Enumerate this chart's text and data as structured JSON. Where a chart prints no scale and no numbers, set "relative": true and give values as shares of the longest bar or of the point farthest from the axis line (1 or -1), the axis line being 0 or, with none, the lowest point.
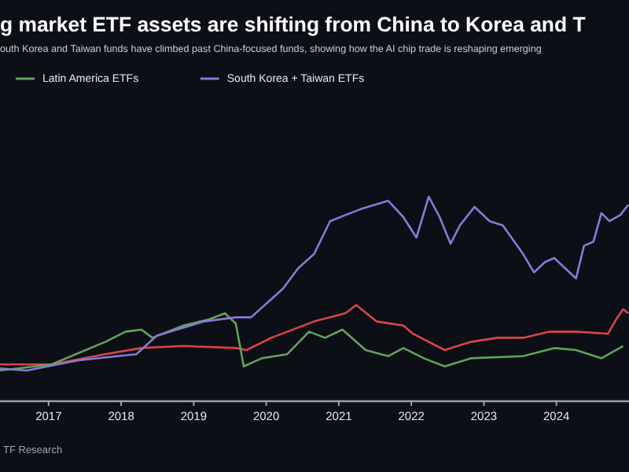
{
  "chart_data": {
    "type": "line",
    "title": "g market ETF assets are shifting from China to Korea and T",
    "subtitle": "outh Korea and Taiwan funds have climbed past China-focused funds, showing how the AI chip trade is reshaping emerging",
    "annotations": [
      "TF Research"
    ],
    "relative": true,
    "legend": "top left",
    "xlim": [
      2016.33,
      2025.0
    ],
    "xticks": [
      2017,
      2018,
      2019,
      2020,
      2021,
      2022,
      2023,
      2024
    ],
    "line_style": "solid",
    "marker": "none",
    "series": [
      {
        "color": "#d9434a",
        "x": [
          2016.33,
          2017.04,
          2017.78,
          2018.28,
          2018.86,
          2019.58,
          2019.73,
          2020.07,
          2020.66,
          2021.09,
          2021.24,
          2021.52,
          2021.89,
          2022.02,
          2022.46,
          2022.82,
          2023.19,
          2023.54,
          2023.91,
          2024.27,
          2024.71,
          2024.84,
          2024.92,
          2024.99
        ],
        "values": [
          0.18,
          0.18,
          0.23,
          0.26,
          0.27,
          0.26,
          0.25,
          0.31,
          0.39,
          0.43,
          0.47,
          0.39,
          0.37,
          0.33,
          0.25,
          0.29,
          0.31,
          0.31,
          0.34,
          0.34,
          0.33,
          0.41,
          0.45,
          0.43
        ]
      },
      {
        "name": "Latin America ETFs",
        "color": "#5fa35a",
        "x": [
          2016.33,
          2017.04,
          2017.78,
          2018.06,
          2018.28,
          2018.43,
          2018.86,
          2019.21,
          2019.43,
          2019.58,
          2019.69,
          2019.94,
          2020.29,
          2020.59,
          2020.81,
          2021.05,
          2021.37,
          2021.68,
          2021.89,
          2022.17,
          2022.46,
          2022.82,
          2023.54,
          2023.97,
          2024.27,
          2024.62,
          2024.92
        ],
        "values": [
          0.15,
          0.18,
          0.29,
          0.34,
          0.35,
          0.31,
          0.37,
          0.4,
          0.43,
          0.38,
          0.17,
          0.21,
          0.23,
          0.34,
          0.31,
          0.35,
          0.25,
          0.22,
          0.26,
          0.21,
          0.17,
          0.21,
          0.22,
          0.26,
          0.25,
          0.21,
          0.27
        ]
      },
      {
        "name": "South Korea + Taiwan ETFs",
        "color": "#8a78d8",
        "x": [
          2016.33,
          2016.7,
          2017.41,
          2018.21,
          2018.49,
          2019.14,
          2019.58,
          2019.79,
          2020.01,
          2020.23,
          2020.44,
          2020.66,
          2020.88,
          2021.09,
          2021.31,
          2021.68,
          2021.89,
          2022.07,
          2022.24,
          2022.39,
          2022.54,
          2022.67,
          2022.87,
          2023.08,
          2023.26,
          2023.54,
          2023.69,
          2023.84,
          2023.97,
          2024.12,
          2024.27,
          2024.38,
          2024.51,
          2024.62,
          2024.73,
          2024.88,
          2024.99
        ],
        "values": [
          0.16,
          0.15,
          0.2,
          0.23,
          0.32,
          0.39,
          0.41,
          0.41,
          0.48,
          0.55,
          0.65,
          0.72,
          0.88,
          0.91,
          0.94,
          0.98,
          0.9,
          0.8,
          1,
          0.9,
          0.77,
          0.86,
          0.95,
          0.88,
          0.86,
          0.72,
          0.63,
          0.68,
          0.7,
          0.65,
          0.6,
          0.76,
          0.78,
          0.92,
          0.88,
          0.91,
          0.96
        ]
      }
    ]
  }
}
